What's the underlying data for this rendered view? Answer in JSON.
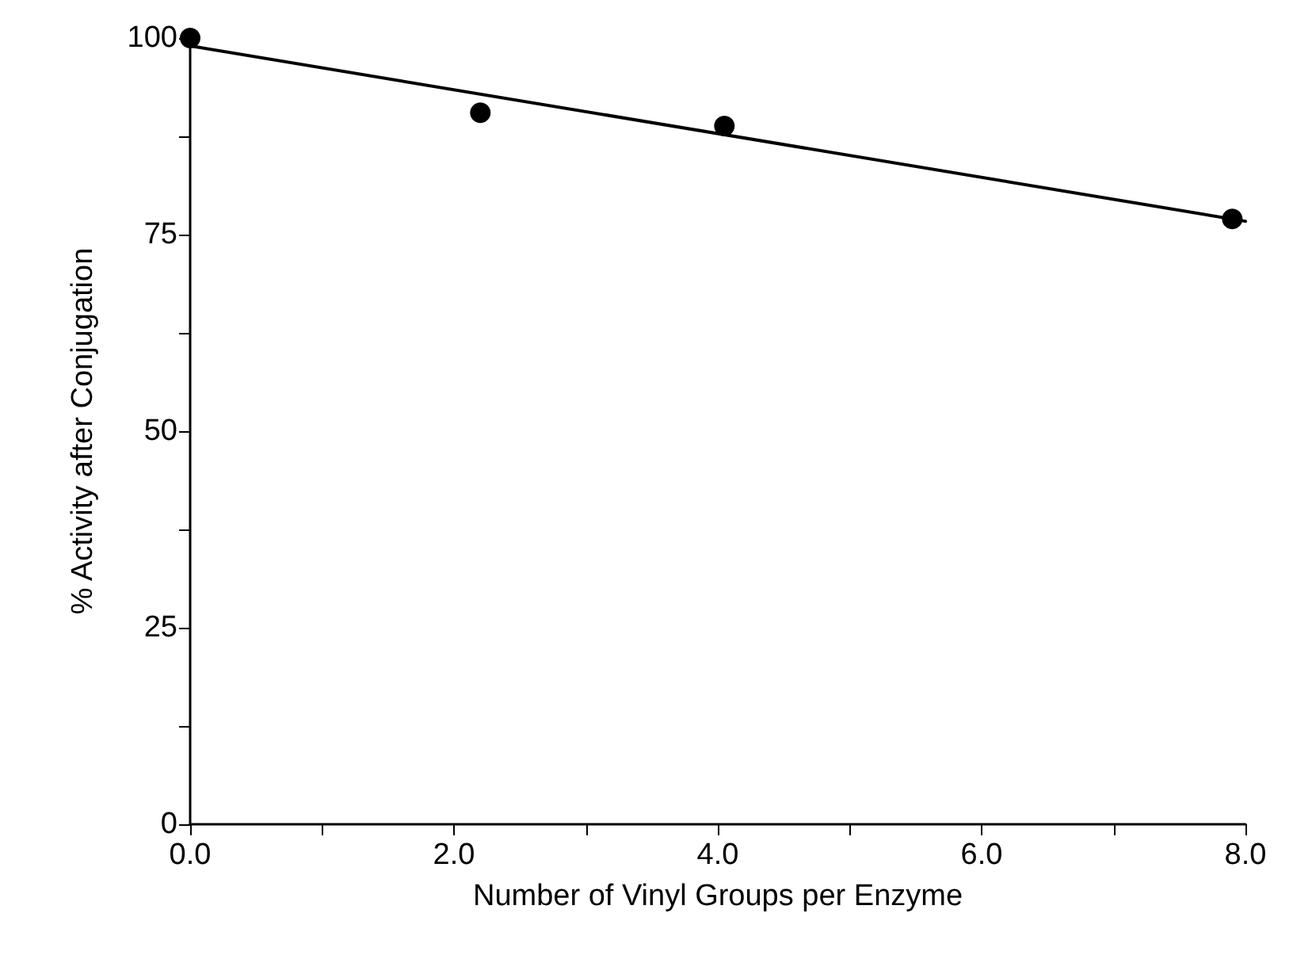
{
  "chart_data": {
    "type": "scatter",
    "xlabel": "Number of Vinyl Groups per Enzyme",
    "ylabel": "% Activity after Conjugation",
    "x": [
      0,
      2.2,
      4.05,
      7.9
    ],
    "series": [
      {
        "color": "#000000",
        "marker": "circle",
        "values": [
          100,
          90.5,
          88.8,
          77
        ]
      },
      {
        "type": "line",
        "color": "#000000",
        "marker": "none",
        "line_style": "solid",
        "x": [
          0,
          8
        ],
        "values": [
          99,
          76.7
        ]
      }
    ],
    "xlim": [
      0,
      8
    ],
    "ylim": [
      0,
      100
    ],
    "xticks": [
      {
        "value": 0,
        "label": "0.0"
      },
      {
        "value": 1,
        "label": null
      },
      {
        "value": 2,
        "label": "2.0"
      },
      {
        "value": 3,
        "label": null
      },
      {
        "value": 4,
        "label": "4.0"
      },
      {
        "value": 5,
        "label": null
      },
      {
        "value": 6,
        "label": "6.0"
      },
      {
        "value": 7,
        "label": null
      },
      {
        "value": 8,
        "label": "8.0"
      }
    ],
    "yticks": [
      0,
      {
        "value": 12.5,
        "label": null
      },
      25,
      {
        "value": 37.5,
        "label": null
      },
      50,
      {
        "value": 62.5,
        "label": null
      },
      75,
      {
        "value": 87.5,
        "label": null
      },
      100
    ],
    "grid": false
  }
}
